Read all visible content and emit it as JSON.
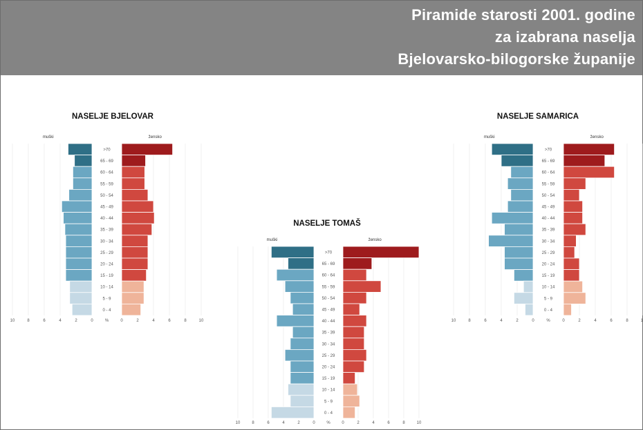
{
  "header": {
    "title_lines": [
      "Piramide starosti 2001. godine",
      "za izabrana naselja",
      "Bjelovarsko-bilogorske županije"
    ]
  },
  "colors": {
    "header_bg": "#848484",
    "male_old": "#2f6f86",
    "male_working": "#6ba7c2",
    "male_young": "#c5d9e5",
    "female_old": "#9e1b1d",
    "female_working": "#d0483f",
    "female_young": "#efb49a"
  },
  "chart_data": [
    {
      "type": "pyramid",
      "title": "NASELJE BJELOVAR",
      "left_label": "muški",
      "right_label": "žensko",
      "unit_label": "%",
      "xticks": [
        "10",
        "8",
        "6",
        "4",
        "2",
        "0",
        "0",
        "2",
        "4",
        "6",
        "8",
        "10"
      ],
      "xlim": [
        0,
        10
      ],
      "age_groups": [
        ">70",
        "65 - 69",
        "60 - 64",
        "55 - 59",
        "50 - 54",
        "45 - 49",
        "40 - 44",
        "35 - 39",
        "30 - 34",
        "25 - 29",
        "20 - 24",
        "15 - 19",
        "10 - 14",
        "5 - 9",
        "0 - 4"
      ],
      "male": [
        3.0,
        2.2,
        2.4,
        2.4,
        2.9,
        3.8,
        3.6,
        3.4,
        3.3,
        3.3,
        3.3,
        3.3,
        2.8,
        2.8,
        2.5
      ],
      "female": [
        6.4,
        3.0,
        2.9,
        2.9,
        3.3,
        4.0,
        4.1,
        3.8,
        3.3,
        3.3,
        3.3,
        3.1,
        2.8,
        2.8,
        2.4
      ]
    },
    {
      "type": "pyramid",
      "title": "NASELJE TOMAŠ",
      "left_label": "muški",
      "right_label": "žensko",
      "unit_label": "%",
      "xticks": [
        "10",
        "8",
        "6",
        "4",
        "2",
        "0",
        "0",
        "2",
        "4",
        "6",
        "8",
        "10"
      ],
      "xlim": [
        0,
        10
      ],
      "age_groups": [
        ">70",
        "65 - 69",
        "60 - 64",
        "55 - 59",
        "50 - 54",
        "45 - 49",
        "40 - 44",
        "35 - 39",
        "30 - 34",
        "25 - 29",
        "20 - 24",
        "15 - 19",
        "10 - 14",
        "5 - 9",
        "0 - 4"
      ],
      "male": [
        5.6,
        3.4,
        4.9,
        3.8,
        3.1,
        2.8,
        4.9,
        2.8,
        3.1,
        3.8,
        3.1,
        3.1,
        3.4,
        3.1,
        5.6
      ],
      "female": [
        10.0,
        3.8,
        3.1,
        5.0,
        3.1,
        2.2,
        3.1,
        2.8,
        2.8,
        3.1,
        2.8,
        1.6,
        1.9,
        2.2,
        1.6
      ]
    },
    {
      "type": "pyramid",
      "title": "NASELJE SAMARICA",
      "left_label": "muški",
      "right_label": "žensko",
      "unit_label": "%",
      "xticks": [
        "10",
        "8",
        "6",
        "4",
        "2",
        "0",
        "0",
        "2",
        "4",
        "6",
        "8",
        "10"
      ],
      "xlim": [
        0,
        10
      ],
      "age_groups": [
        ">70",
        "65 - 69",
        "60 - 64",
        "55 - 59",
        "50 - 54",
        "45 - 49",
        "40 - 44",
        "35 - 39",
        "30 - 34",
        "25 - 29",
        "20 - 24",
        "15 - 19",
        "10 - 14",
        "5 - 9",
        "0 - 4"
      ],
      "male": [
        5.2,
        4.0,
        2.8,
        3.2,
        2.8,
        3.2,
        5.2,
        3.6,
        5.6,
        3.6,
        3.6,
        2.4,
        1.2,
        2.4,
        1.0
      ],
      "female": [
        6.4,
        5.2,
        6.4,
        2.8,
        2.0,
        2.4,
        2.4,
        2.8,
        1.6,
        1.4,
        2.0,
        2.0,
        2.4,
        2.8,
        1.0
      ]
    }
  ]
}
